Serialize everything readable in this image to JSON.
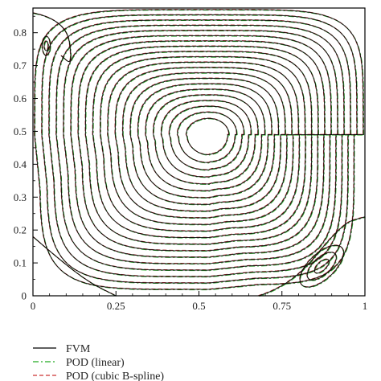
{
  "chart_data": {
    "type": "contour",
    "title": "",
    "xlabel": "",
    "ylabel": "",
    "xlim": [
      0,
      1
    ],
    "ylim": [
      0,
      0.875
    ],
    "x_ticks": [
      "0",
      "0.25",
      "0.5",
      "0.75",
      "1"
    ],
    "y_ticks": [
      "0",
      "0.1",
      "0.2",
      "0.3",
      "0.4",
      "0.5",
      "0.6",
      "0.7",
      "0.8"
    ],
    "grid": false,
    "primary_vortex_center": {
      "x": 0.53,
      "y": 0.49
    },
    "primary_contour_count": 21,
    "secondary_vortex_centers": [
      {
        "x": 0.87,
        "y": 0.09
      },
      {
        "x": 0.04,
        "y": 0.76
      }
    ],
    "series": [
      {
        "name": "FVM",
        "color": "#000000",
        "style": "solid"
      },
      {
        "name": "POD (linear)",
        "color": "#22aa22",
        "style": "dash-dot"
      },
      {
        "name": "POD (cubic B-spline)",
        "color": "#cc3333",
        "style": "dashed"
      }
    ],
    "legend_position": "bottom-left"
  }
}
